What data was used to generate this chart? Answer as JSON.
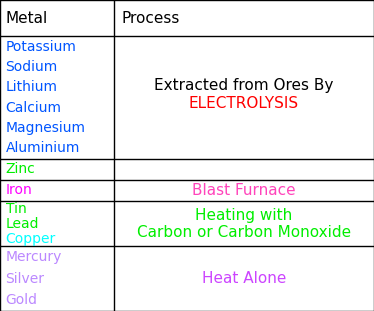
{
  "col1_header": "Metal",
  "col2_header": "Process",
  "metal_colors": {
    "Potassium": "#0055ff",
    "Sodium": "#0055ff",
    "Lithium": "#0055ff",
    "Calcium": "#0055ff",
    "Magnesium": "#0055ff",
    "Aluminium": "#0055ff",
    "Zinc": "#00ee00",
    "Iron": "#ff00ff",
    "Tin": "#00ee00",
    "Lead": "#00ee00",
    "Copper": "#00ffff",
    "Mercury": "#bb88ff",
    "Silver": "#bb88ff",
    "Gold": "#bb88ff"
  },
  "background_color": "#ffffff",
  "border_color": "#000000",
  "col_divider": 0.305,
  "row_tops": [
    1.0,
    0.883,
    0.49,
    0.422,
    0.353,
    0.208
  ],
  "row_bottoms": [
    0.883,
    0.49,
    0.422,
    0.353,
    0.208,
    0.0
  ],
  "header_fontsize": 11,
  "metal_fontsize": 10,
  "process_fontsize": 11
}
